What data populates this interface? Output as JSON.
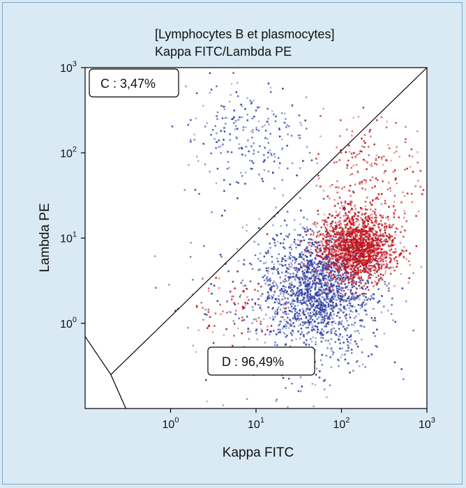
{
  "chart_data": {
    "type": "scatter",
    "title_line1": "[Lymphocytes B et plasmocytes]",
    "title_line2": "Kappa FITC/Lambda PE",
    "xlabel": "Kappa FITC",
    "ylabel": "Lambda PE",
    "x_scale": "log",
    "y_scale": "log",
    "xlim": [
      0.1,
      1000
    ],
    "ylim": [
      0.1,
      1000
    ],
    "x_ticks": [
      {
        "base": "10",
        "exp": "0",
        "value": 1
      },
      {
        "base": "10",
        "exp": "1",
        "value": 10
      },
      {
        "base": "10",
        "exp": "2",
        "value": 100
      },
      {
        "base": "10",
        "exp": "3",
        "value": 1000
      }
    ],
    "y_ticks": [
      {
        "base": "10",
        "exp": "0",
        "value": 1
      },
      {
        "base": "10",
        "exp": "1",
        "value": 10
      },
      {
        "base": "10",
        "exp": "2",
        "value": 100
      },
      {
        "base": "10",
        "exp": "3",
        "value": 1000
      }
    ],
    "gates": [
      {
        "name": "C",
        "label": "C : 3,47%"
      },
      {
        "name": "D",
        "label": "D : 96,49%"
      }
    ],
    "gate_divider": [
      [
        0.2,
        0.25
      ],
      [
        1000,
        1000
      ]
    ],
    "gate_corner": [
      [
        0.1,
        0.7
      ],
      [
        0.2,
        0.25
      ],
      [
        0.3,
        0.1
      ]
    ],
    "series": [
      {
        "color": "#2f3fa0",
        "clusters": [
          {
            "cx": 50,
            "cy": 2.5,
            "sx": 0.32,
            "sy": 0.34,
            "n": 1700
          },
          {
            "cx": 8,
            "cy": 150,
            "sx": 0.35,
            "sy": 0.35,
            "n": 230
          },
          {
            "cx": 30,
            "cy": 1.2,
            "sx": 0.55,
            "sy": 0.6,
            "n": 260
          }
        ]
      },
      {
        "color": "#c0141c",
        "clusters": [
          {
            "cx": 150,
            "cy": 8,
            "sx": 0.22,
            "sy": 0.2,
            "n": 1700
          },
          {
            "cx": 200,
            "cy": 60,
            "sx": 0.3,
            "sy": 0.35,
            "n": 200
          },
          {
            "cx": 5,
            "cy": 1.6,
            "sx": 0.3,
            "sy": 0.25,
            "n": 80
          }
        ]
      }
    ]
  }
}
